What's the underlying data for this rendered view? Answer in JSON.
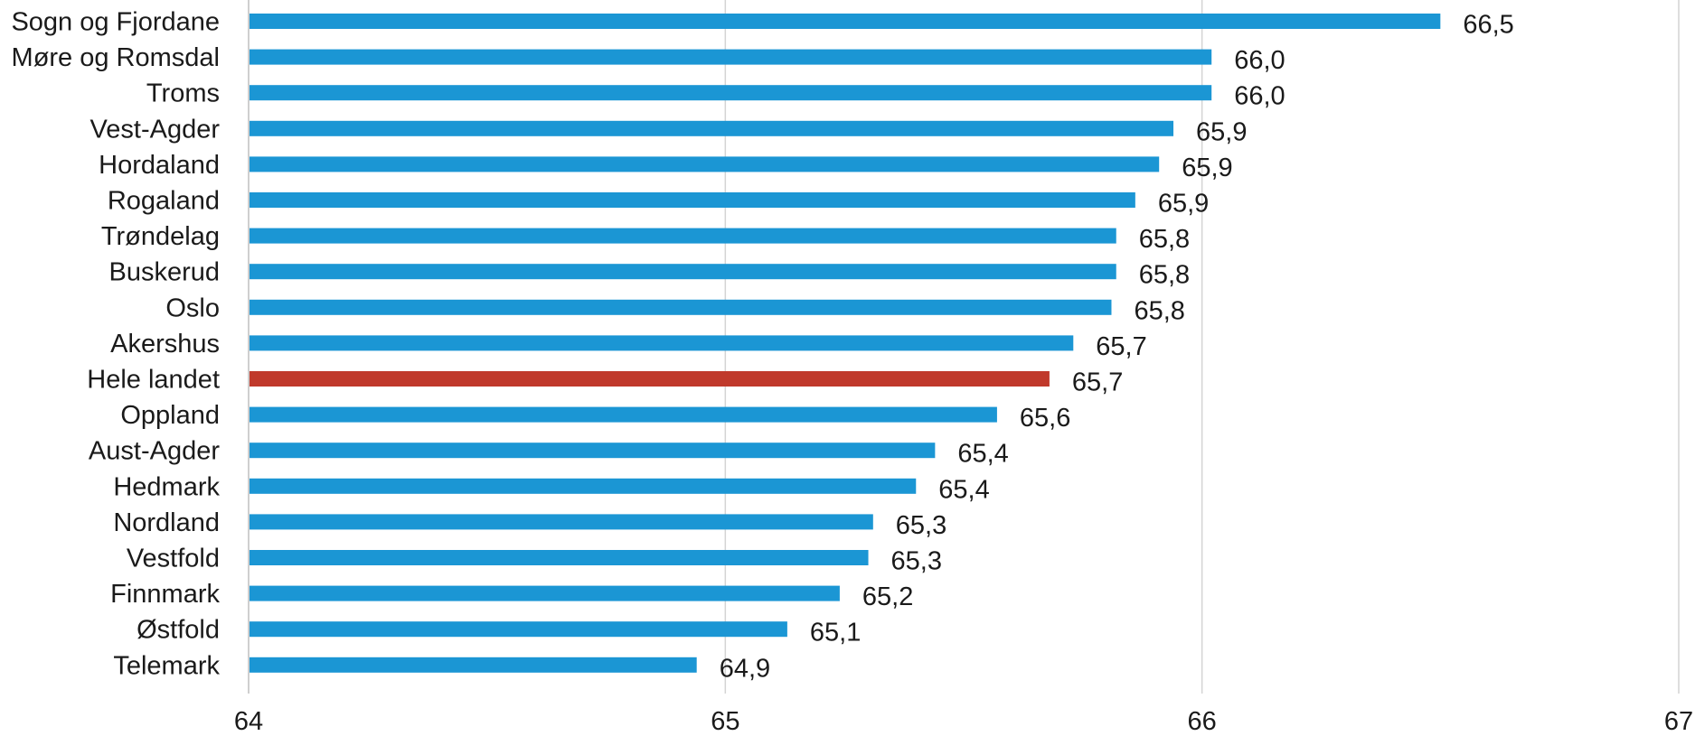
{
  "chart_data": {
    "type": "bar",
    "orientation": "horizontal",
    "title": "",
    "xlabel": "",
    "ylabel": "",
    "xlim": [
      64,
      67
    ],
    "x_ticks": [
      64,
      65,
      66,
      67
    ],
    "grid": true,
    "legend": "none",
    "colors": {
      "default": "#1b96d4",
      "highlight": "#c0392b"
    },
    "categories": [
      "Sogn og Fjordane",
      "Møre og Romsdal",
      "Troms",
      "Vest-Agder",
      "Hordaland",
      "Rogaland",
      "Trøndelag",
      "Buskerud",
      "Oslo",
      "Akershus",
      "Hele landet",
      "Oppland",
      "Aust-Agder",
      "Hedmark",
      "Nordland",
      "Vestfold",
      "Finnmark",
      "Østfold",
      "Telemark"
    ],
    "values": [
      66.5,
      66.02,
      66.02,
      65.94,
      65.91,
      65.86,
      65.82,
      65.82,
      65.81,
      65.73,
      65.68,
      65.57,
      65.44,
      65.4,
      65.31,
      65.3,
      65.24,
      65.13,
      64.94
    ],
    "data_labels": [
      "66,5",
      "66,0",
      "66,0",
      "65,9",
      "65,9",
      "65,9",
      "65,8",
      "65,8",
      "65,8",
      "65,7",
      "65,7",
      "65,6",
      "65,4",
      "65,4",
      "65,3",
      "65,3",
      "65,2",
      "65,1",
      "64,9"
    ],
    "highlight_category": "Hele landet"
  }
}
